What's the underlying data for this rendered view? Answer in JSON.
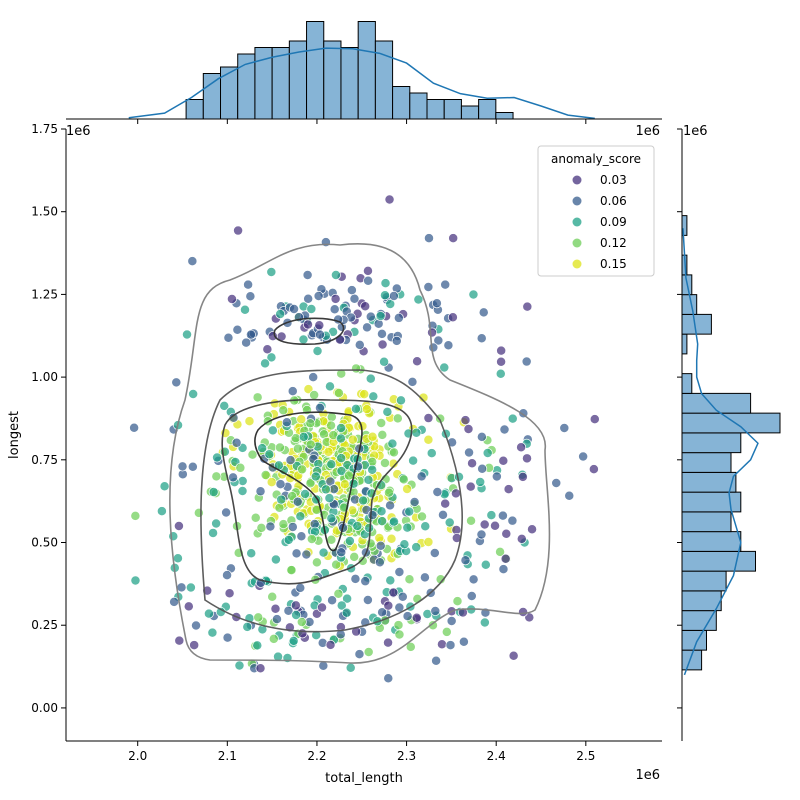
{
  "chart_data": [
    {
      "type": "scatter",
      "panel": "joint",
      "xlabel": "total_length",
      "ylabel": "longest",
      "x_offset_label": "1e6",
      "y_offset_label": "1e6",
      "xlim": [
        1.92,
        2.585
      ],
      "ylim": [
        -0.1,
        1.75
      ],
      "x_ticks": [
        2.0,
        2.1,
        2.2,
        2.3,
        2.4,
        2.5
      ],
      "x_tick_labels": [
        "2.0",
        "2.1",
        "2.2",
        "2.3",
        "2.4",
        "2.5"
      ],
      "y_ticks": [
        0.0,
        0.25,
        0.5,
        0.75,
        1.0,
        1.25,
        1.5,
        1.75
      ],
      "y_tick_labels": [
        "0.00",
        "0.25",
        "0.50",
        "0.75",
        "1.00",
        "1.25",
        "1.50",
        "1.75"
      ],
      "grid": false,
      "hue": "anomaly_score",
      "colormap": "viridis",
      "legend": {
        "title": "anomaly_score",
        "placement": "top-right",
        "entries": [
          {
            "label": "0.03",
            "color": "#46327e"
          },
          {
            "label": "0.06",
            "color": "#365c8d"
          },
          {
            "label": "0.09",
            "color": "#1fa187"
          },
          {
            "label": "0.12",
            "color": "#6ece58"
          },
          {
            "label": "0.15",
            "color": "#dde318"
          }
        ]
      },
      "points": [
        {
          "x": 1.996,
          "y": 0.847,
          "score": 0.06
        },
        {
          "x": 2.045,
          "y": 0.855,
          "score": 0.09
        },
        {
          "x": 2.112,
          "y": 1.443,
          "score": 0.03
        },
        {
          "x": 2.281,
          "y": 1.537,
          "score": 0.03
        },
        {
          "x": 2.51,
          "y": 0.873,
          "score": 0.03
        },
        {
          "x": 2.509,
          "y": 0.722,
          "score": 0.03
        },
        {
          "x": 2.497,
          "y": 0.76,
          "score": 0.06
        },
        {
          "x": 2.476,
          "y": 0.846,
          "score": 0.06
        },
        {
          "x": 2.467,
          "y": 0.68,
          "score": 0.06
        },
        {
          "x": 2.44,
          "y": 0.54,
          "score": 0.03
        },
        {
          "x": 2.43,
          "y": 0.29,
          "score": 0.03
        },
        {
          "x": 2.063,
          "y": 0.19,
          "score": 0.03
        },
        {
          "x": 2.057,
          "y": 0.307,
          "score": 0.03
        },
        {
          "x": 2.352,
          "y": 1.42,
          "score": 0.03
        },
        {
          "x": 2.325,
          "y": 1.42,
          "score": 0.06
        },
        {
          "x": 2.434,
          "y": 1.047,
          "score": 0.06
        },
        {
          "x": 2.21,
          "y": 1.408,
          "score": 0.06
        },
        {
          "x": 2.13,
          "y": 0.12,
          "score": 0.06
        },
        {
          "x": 2.137,
          "y": 0.12,
          "score": 0.03
        },
        {
          "x": 2.349,
          "y": 0.19,
          "score": 0.06
        },
        {
          "x": 2.03,
          "y": 0.67,
          "score": 0.09
        },
        {
          "x": 2.027,
          "y": 0.595,
          "score": 0.09
        },
        {
          "x": 2.046,
          "y": 0.55,
          "score": 0.03
        },
        {
          "x": 2.05,
          "y": 0.73,
          "score": 0.06
        }
      ],
      "cluster_generation": {
        "note": "additional points drawn by script from seeded generator reproducing the cloud density",
        "seed": 7
      },
      "contour_color": "#000000"
    },
    {
      "type": "bar",
      "panel": "top-marginal",
      "description_of": "total_length histogram with KDE",
      "bin_edges_start": 2.054,
      "bin_width": 0.0192,
      "values": [
        3,
        7,
        8,
        10,
        11,
        11,
        12,
        15,
        12,
        11,
        15,
        12,
        5,
        4,
        3,
        3,
        2,
        3,
        1,
        0
      ],
      "kde_x": [
        1.99,
        2.03,
        2.06,
        2.09,
        2.12,
        2.15,
        2.18,
        2.21,
        2.24,
        2.27,
        2.3,
        2.33,
        2.36,
        2.39,
        2.42,
        2.45,
        2.48,
        2.51
      ],
      "kde_y": [
        0.2,
        0.9,
        3.3,
        6.2,
        8.4,
        9.5,
        10.3,
        10.9,
        10.8,
        10.1,
        8.6,
        5.5,
        3.9,
        3.2,
        3.3,
        2.0,
        0.6,
        0.1
      ],
      "fill": "#86b4d6",
      "line": "#1f77b4"
    },
    {
      "type": "bar",
      "panel": "right-marginal",
      "description_of": "longest histogram with KDE (horizontal)",
      "bin_edges_start": 0.115,
      "bin_height": 0.0597,
      "values": [
        4,
        5,
        7,
        8,
        9,
        15,
        12,
        10,
        12,
        11,
        10,
        12,
        20,
        14,
        2,
        0,
        1,
        6,
        3,
        2,
        1,
        0,
        1
      ],
      "kde_y": [
        0.1,
        0.2,
        0.3,
        0.4,
        0.5,
        0.55,
        0.6,
        0.65,
        0.7,
        0.75,
        0.8,
        0.85,
        0.9,
        0.95,
        1.0,
        1.05,
        1.1,
        1.2,
        1.3,
        1.45
      ],
      "kde_x": [
        0.5,
        3.0,
        7.0,
        10.5,
        12.0,
        11.0,
        10.0,
        9.6,
        10.5,
        14.0,
        15.5,
        12.0,
        7.0,
        4.0,
        3.0,
        3.0,
        3.2,
        2.2,
        0.8,
        0.2
      ],
      "fill": "#86b4d6",
      "line": "#1f77b4"
    }
  ]
}
